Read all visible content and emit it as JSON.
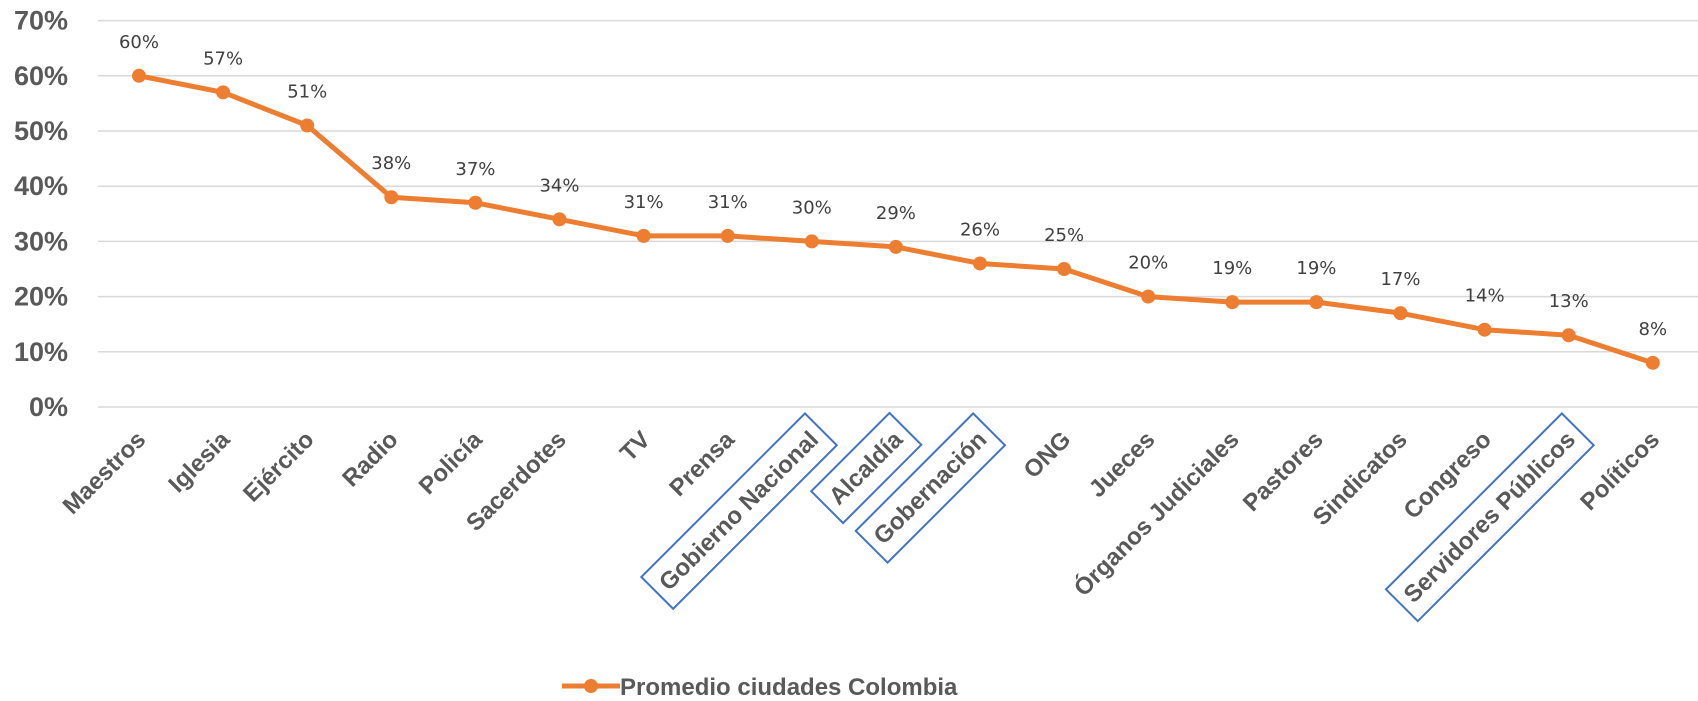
{
  "chart_data": {
    "type": "line",
    "categories": [
      "Maestros",
      "Iglesia",
      "Ejército",
      "Radio",
      "Policía",
      "Sacerdotes",
      "TV",
      "Prensa",
      "Gobierno Nacional",
      "Alcaldía",
      "Gobernación",
      "ONG",
      "Jueces",
      "Órganos Judiciales",
      "Pastores",
      "Sindicatos",
      "Congreso",
      "Servidores Públicos",
      "Políticos"
    ],
    "series": [
      {
        "name": "Promedio ciudades Colombia",
        "values": [
          60,
          57,
          51,
          38,
          37,
          34,
          31,
          31,
          30,
          29,
          26,
          25,
          20,
          19,
          19,
          17,
          14,
          13,
          8
        ],
        "data_labels": [
          "60%",
          "57%",
          "51%",
          "38%",
          "37%",
          "34%",
          "31%",
          "31%",
          "30%",
          "29%",
          "26%",
          "25%",
          "20%",
          "19%",
          "19%",
          "17%",
          "14%",
          "13%",
          "8%"
        ],
        "color": "#ed7d31"
      }
    ],
    "ylim": [
      0,
      70
    ],
    "yticks": [
      "0%",
      "10%",
      "20%",
      "30%",
      "40%",
      "50%",
      "60%",
      "70%"
    ],
    "grid": true,
    "legend_position": "bottom",
    "highlighted_categories": [
      "Gobierno Nacional",
      "Alcaldía",
      "Gobernación",
      "Servidores Públicos"
    ],
    "highlight_color": "#4472c4"
  }
}
